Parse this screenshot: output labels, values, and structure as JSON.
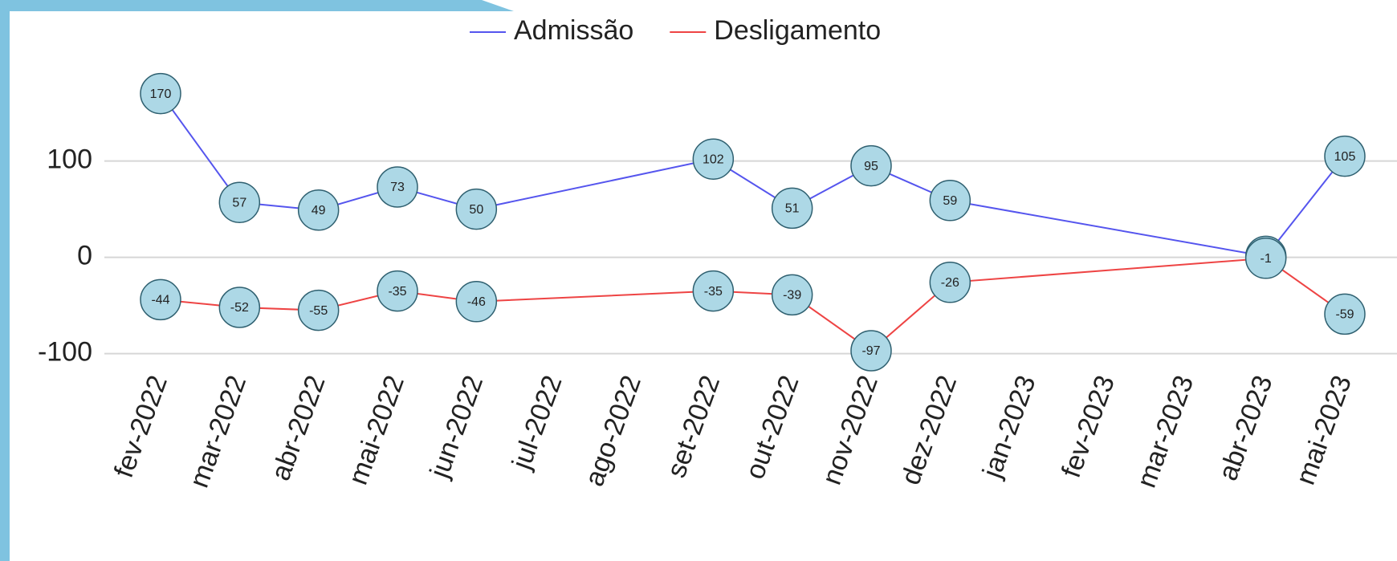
{
  "chart_data": {
    "type": "line",
    "categories": [
      "fev-2022",
      "mar-2022",
      "abr-2022",
      "mai-2022",
      "jun-2022",
      "jul-2022",
      "ago-2022",
      "set-2022",
      "out-2022",
      "nov-2022",
      "dez-2022",
      "jan-2023",
      "fev-2023",
      "mar-2023",
      "abr-2023",
      "mai-2023"
    ],
    "series": [
      {
        "name": "Admissão",
        "color": "#5555ee",
        "x": [
          "fev-2022",
          "mar-2022",
          "abr-2022",
          "mai-2022",
          "jun-2022",
          "set-2022",
          "out-2022",
          "nov-2022",
          "dez-2022",
          "abr-2023",
          "mai-2023"
        ],
        "values": [
          170,
          57,
          49,
          73,
          50,
          102,
          51,
          95,
          59,
          1,
          105
        ]
      },
      {
        "name": "Desligamento",
        "color": "#ee4444",
        "x": [
          "fev-2022",
          "mar-2022",
          "abr-2022",
          "mai-2022",
          "jun-2022",
          "set-2022",
          "out-2022",
          "nov-2022",
          "dez-2022",
          "abr-2023",
          "mai-2023"
        ],
        "values": [
          -44,
          -52,
          -55,
          -35,
          -46,
          -35,
          -39,
          -97,
          -26,
          -1,
          -59
        ]
      }
    ],
    "ylim": [
      -112,
      188
    ],
    "yticks": [
      -100,
      0,
      100
    ],
    "grid": true,
    "legend": "top"
  }
}
